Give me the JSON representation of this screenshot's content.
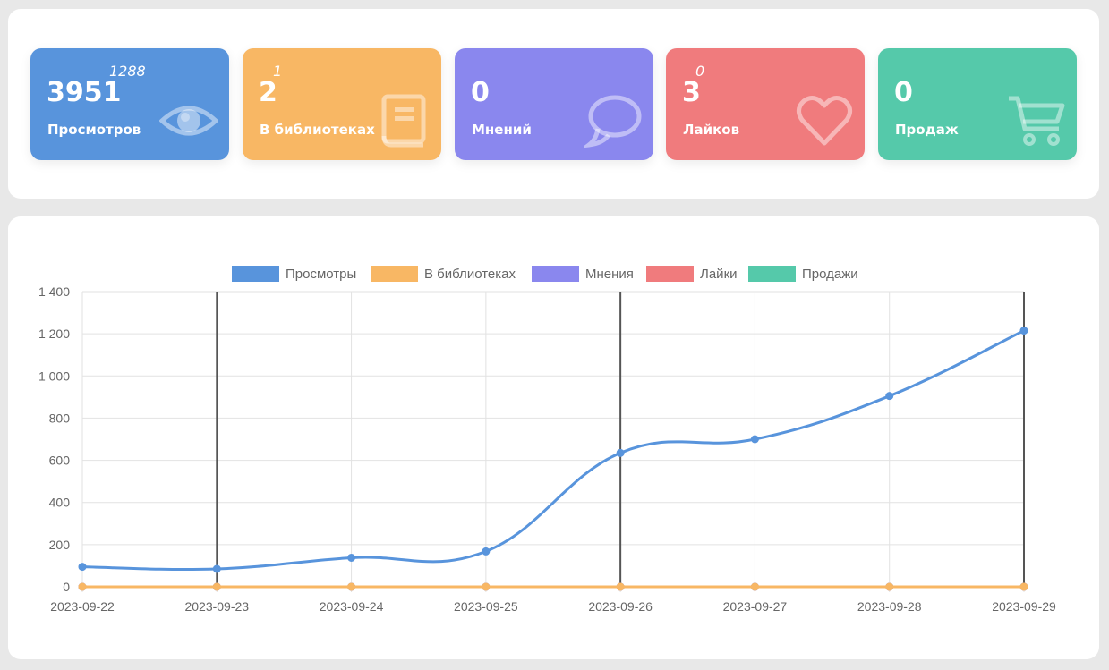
{
  "cards": [
    {
      "value": "3951",
      "delta": "1288",
      "label": "Просмотров",
      "color": "#5894dc",
      "icon": "eye-icon"
    },
    {
      "value": "2",
      "delta": "1",
      "label": "В библиотеках",
      "color": "#f8b764",
      "icon": "book-icon"
    },
    {
      "value": "0",
      "delta": "",
      "label": "Мнений",
      "color": "#8a87ee",
      "icon": "speech-bubble-icon"
    },
    {
      "value": "3",
      "delta": "0",
      "label": "Лайков",
      "color": "#f07b7d",
      "icon": "heart-icon"
    },
    {
      "value": "0",
      "delta": "",
      "label": "Продаж",
      "color": "#55c9aa",
      "icon": "cart-icon"
    }
  ],
  "chart_data": {
    "type": "line",
    "x": [
      "2023-09-22",
      "2023-09-23",
      "2023-09-24",
      "2023-09-25",
      "2023-09-26",
      "2023-09-27",
      "2023-09-28",
      "2023-09-29"
    ],
    "series": [
      {
        "name": "Просмотры",
        "color": "#5894dc",
        "values": [
          95,
          85,
          138,
          168,
          635,
          700,
          905,
          1215
        ]
      },
      {
        "name": "В библиотеках",
        "color": "#f8b764",
        "values": [
          0,
          0,
          0,
          0,
          0,
          0,
          0,
          0
        ]
      },
      {
        "name": "Мнения",
        "color": "#8a87ee",
        "values": [
          0,
          0,
          0,
          0,
          0,
          0,
          0,
          0
        ]
      },
      {
        "name": "Лайки",
        "color": "#f07b7d",
        "values": [
          0,
          0,
          0,
          0,
          0,
          0,
          0,
          0
        ]
      },
      {
        "name": "Продажи",
        "color": "#55c9aa",
        "values": [
          0,
          0,
          0,
          0,
          0,
          0,
          0,
          0
        ]
      }
    ],
    "ylim": [
      0,
      1400
    ],
    "yticks": [
      0,
      200,
      400,
      600,
      800,
      1000,
      1200,
      1400
    ],
    "ytick_labels": [
      "0",
      "200",
      "400",
      "600",
      "800",
      "1 000",
      "1 200",
      "1 400"
    ],
    "highlighted_x": [
      "2023-09-23",
      "2023-09-26",
      "2023-09-29"
    ],
    "legend_position": "top-center",
    "grid": true,
    "smooth": true
  }
}
